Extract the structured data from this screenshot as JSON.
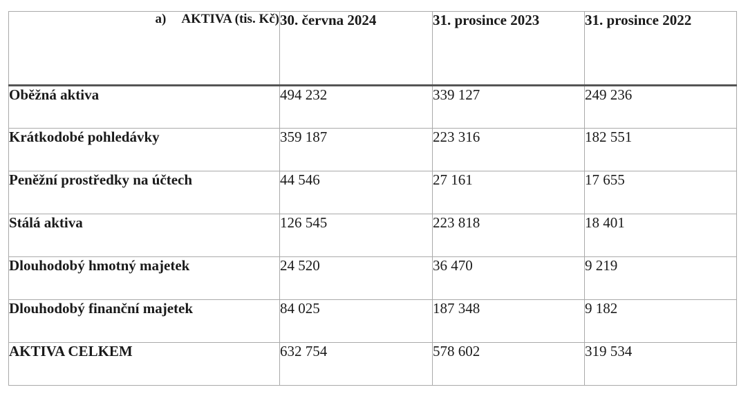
{
  "table": {
    "header": {
      "prefix": "a)",
      "label": "AKTIVA (tis. Kč)",
      "columns": [
        "30. června 2024",
        "31. prosince 2023",
        "31. prosince 2022"
      ]
    },
    "rows": [
      {
        "label": "Oběžná aktiva",
        "values": [
          "494 232",
          "339 127",
          "249 236"
        ]
      },
      {
        "label": "Krátkodobé pohledávky",
        "values": [
          "359 187",
          "223 316",
          "182 551"
        ]
      },
      {
        "label": "Peněžní prostředky na účtech",
        "values": [
          "44 546",
          "27 161",
          "17 655"
        ]
      },
      {
        "label": "Stálá aktiva",
        "values": [
          "126 545",
          "223 818",
          "18 401"
        ]
      },
      {
        "label": "Dlouhodobý hmotný majetek",
        "values": [
          "24 520",
          "36 470",
          "9 219"
        ]
      },
      {
        "label": "Dlouhodobý finanční majetek",
        "values": [
          "84 025",
          "187 348",
          "9 182"
        ]
      },
      {
        "label": "AKTIVA CELKEM",
        "values": [
          "632 754",
          "578 602",
          "319 534"
        ]
      }
    ]
  }
}
